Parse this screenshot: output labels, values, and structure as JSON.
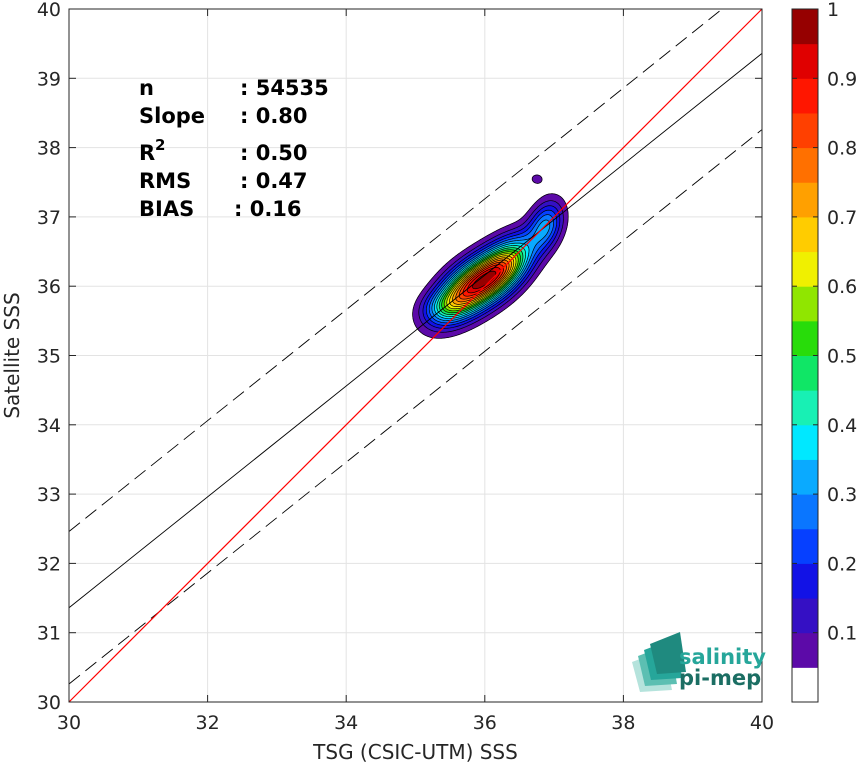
{
  "chart_data": {
    "type": "scatter",
    "subtype": "density-contour",
    "xlabel": "TSG (CSIC-UTM) SSS",
    "ylabel": "Satellite SSS",
    "xlim": [
      30,
      40
    ],
    "ylim": [
      30,
      40
    ],
    "x_ticks": [
      "30",
      "32",
      "34",
      "36",
      "38",
      "40"
    ],
    "y_ticks": [
      "30",
      "31",
      "32",
      "33",
      "34",
      "35",
      "36",
      "37",
      "38",
      "39",
      "40"
    ],
    "grid": true,
    "stats": {
      "n_label": "n",
      "n_value": ": 54535",
      "slope_label": "Slope",
      "slope_value": ": 0.80",
      "r2_label": "R",
      "r2_sup": "2",
      "r2_value": ": 0.50",
      "rms_label": "RMS",
      "rms_value": ": 0.47",
      "bias_label": "BIAS",
      "bias_value": ": 0.16"
    },
    "lines": {
      "identity": {
        "slope": 1.0,
        "intercept": 0.0,
        "color": "#ff0000"
      },
      "regression": {
        "slope": 0.8,
        "intercept": 7.36,
        "color": "#000000"
      },
      "offset_band": {
        "dy": 1.1,
        "color": "#000000",
        "style": "dashed"
      }
    },
    "density_peaks": [
      {
        "x": 35.75,
        "y": 35.95,
        "sx": 0.32,
        "sy": 0.3,
        "rho": 0.55,
        "amp": 1.0
      },
      {
        "x": 36.25,
        "y": 36.25,
        "sx": 0.3,
        "sy": 0.3,
        "rho": 0.55,
        "amp": 0.92
      },
      {
        "x": 36.88,
        "y": 36.88,
        "sx": 0.17,
        "sy": 0.24,
        "rho": 0.3,
        "amp": 0.4
      },
      {
        "x": 35.4,
        "y": 35.7,
        "sx": 0.22,
        "sy": 0.16,
        "rho": 0.2,
        "amp": 0.18
      },
      {
        "x": 36.75,
        "y": 37.55,
        "sx": 0.12,
        "sy": 0.1,
        "rho": 0.0,
        "amp": 0.08
      }
    ],
    "contour_levels": [
      0.05,
      0.1,
      0.15,
      0.2,
      0.25,
      0.3,
      0.35,
      0.4,
      0.45,
      0.5,
      0.55,
      0.6,
      0.65,
      0.7,
      0.75,
      0.8,
      0.85,
      0.9,
      0.95
    ],
    "colorbar": {
      "range": [
        0,
        1
      ],
      "ticks": [
        "0.1",
        "0.2",
        "0.3",
        "0.4",
        "0.5",
        "0.6",
        "0.7",
        "0.8",
        "0.9",
        "1"
      ],
      "colors": [
        "#ffffff",
        "#5c0aa8",
        "#3510c4",
        "#1212e6",
        "#0640ff",
        "#0a76ff",
        "#0aaaff",
        "#00e8ff",
        "#18f0b4",
        "#10e666",
        "#28dc0a",
        "#90e600",
        "#f0f000",
        "#ffcc00",
        "#ffa000",
        "#ff7000",
        "#ff4000",
        "#ff1600",
        "#e00000",
        "#960000"
      ]
    }
  },
  "logo": {
    "line1": "salinity",
    "line2": "pi-mep",
    "color": "#26a69a",
    "dark": "#1b6e63"
  }
}
